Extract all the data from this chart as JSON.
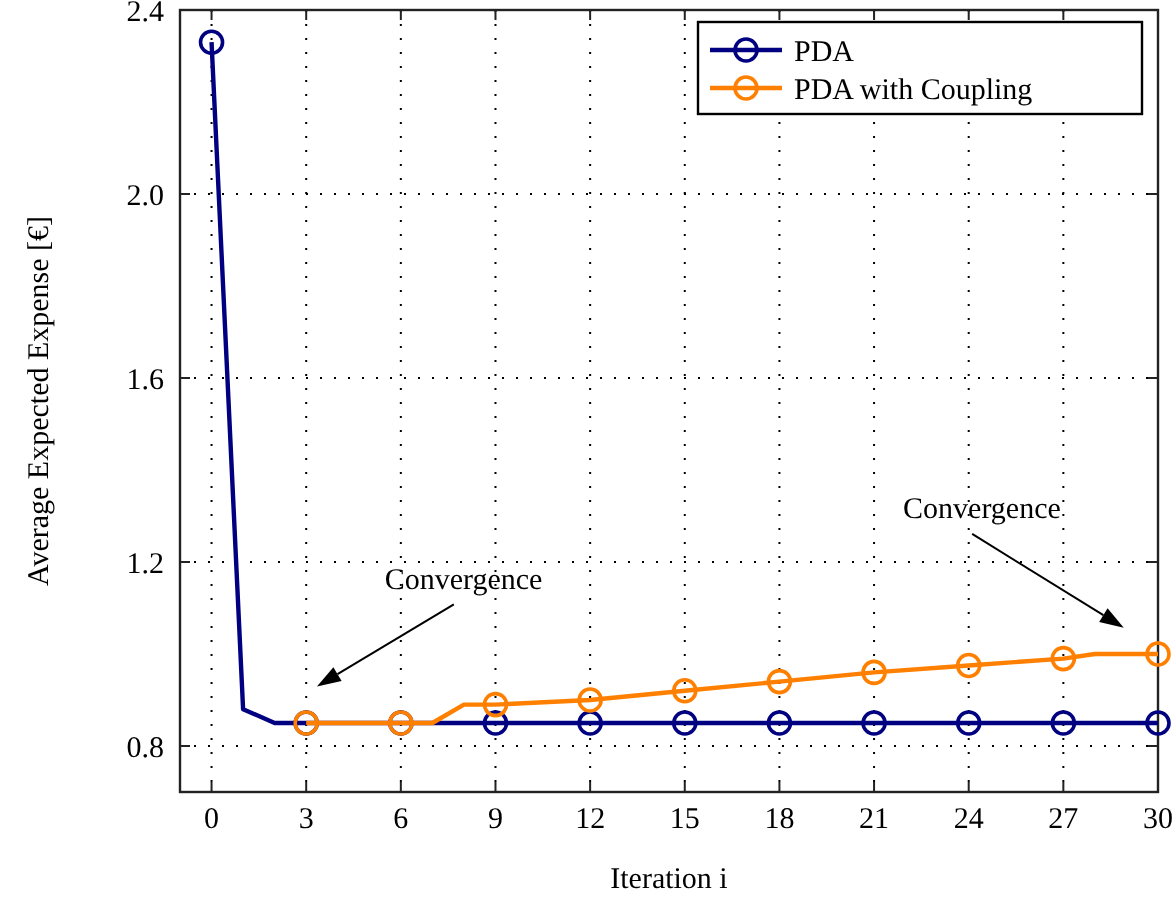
{
  "chart_data": {
    "type": "line",
    "xlabel": "Iteration i",
    "ylabel": "Average Expected Expense [€]",
    "xlim": [
      -1,
      30
    ],
    "xticks": [
      0,
      3,
      6,
      9,
      12,
      15,
      18,
      21,
      24,
      27,
      30
    ],
    "ylim": [
      0.7,
      2.4
    ],
    "yticks": [
      {
        "value": 0.8,
        "label": "0.8"
      },
      {
        "value": 1.2,
        "label": "1.2"
      },
      {
        "value": 1.6,
        "label": "1.6"
      },
      {
        "value": 2,
        "label": "2.0"
      },
      {
        "value": 2.4,
        "label": "2.4"
      }
    ],
    "grid": true,
    "legend": "top right",
    "marker": "circle",
    "line_style": "solid",
    "series": [
      {
        "name": "PDA",
        "color": "#000080",
        "x": [
          0,
          1,
          2,
          3,
          6,
          9,
          12,
          15,
          18,
          21,
          24,
          27,
          30
        ],
        "values": [
          2.33,
          0.88,
          0.85,
          0.85,
          0.85,
          0.85,
          0.85,
          0.85,
          0.85,
          0.85,
          0.85,
          0.85,
          0.85
        ]
      },
      {
        "name": "PDA with Coupling",
        "color": "#ff8000",
        "x": [
          3,
          6,
          7,
          8,
          9,
          12,
          15,
          18,
          21,
          24,
          27,
          28,
          30
        ],
        "values": [
          0.85,
          0.85,
          0.85,
          0.89,
          0.89,
          0.9,
          0.92,
          0.94,
          0.96,
          0.975,
          0.99,
          1.0,
          1.0
        ]
      }
    ],
    "annotations": [
      "Convergence",
      "Convergence"
    ]
  }
}
